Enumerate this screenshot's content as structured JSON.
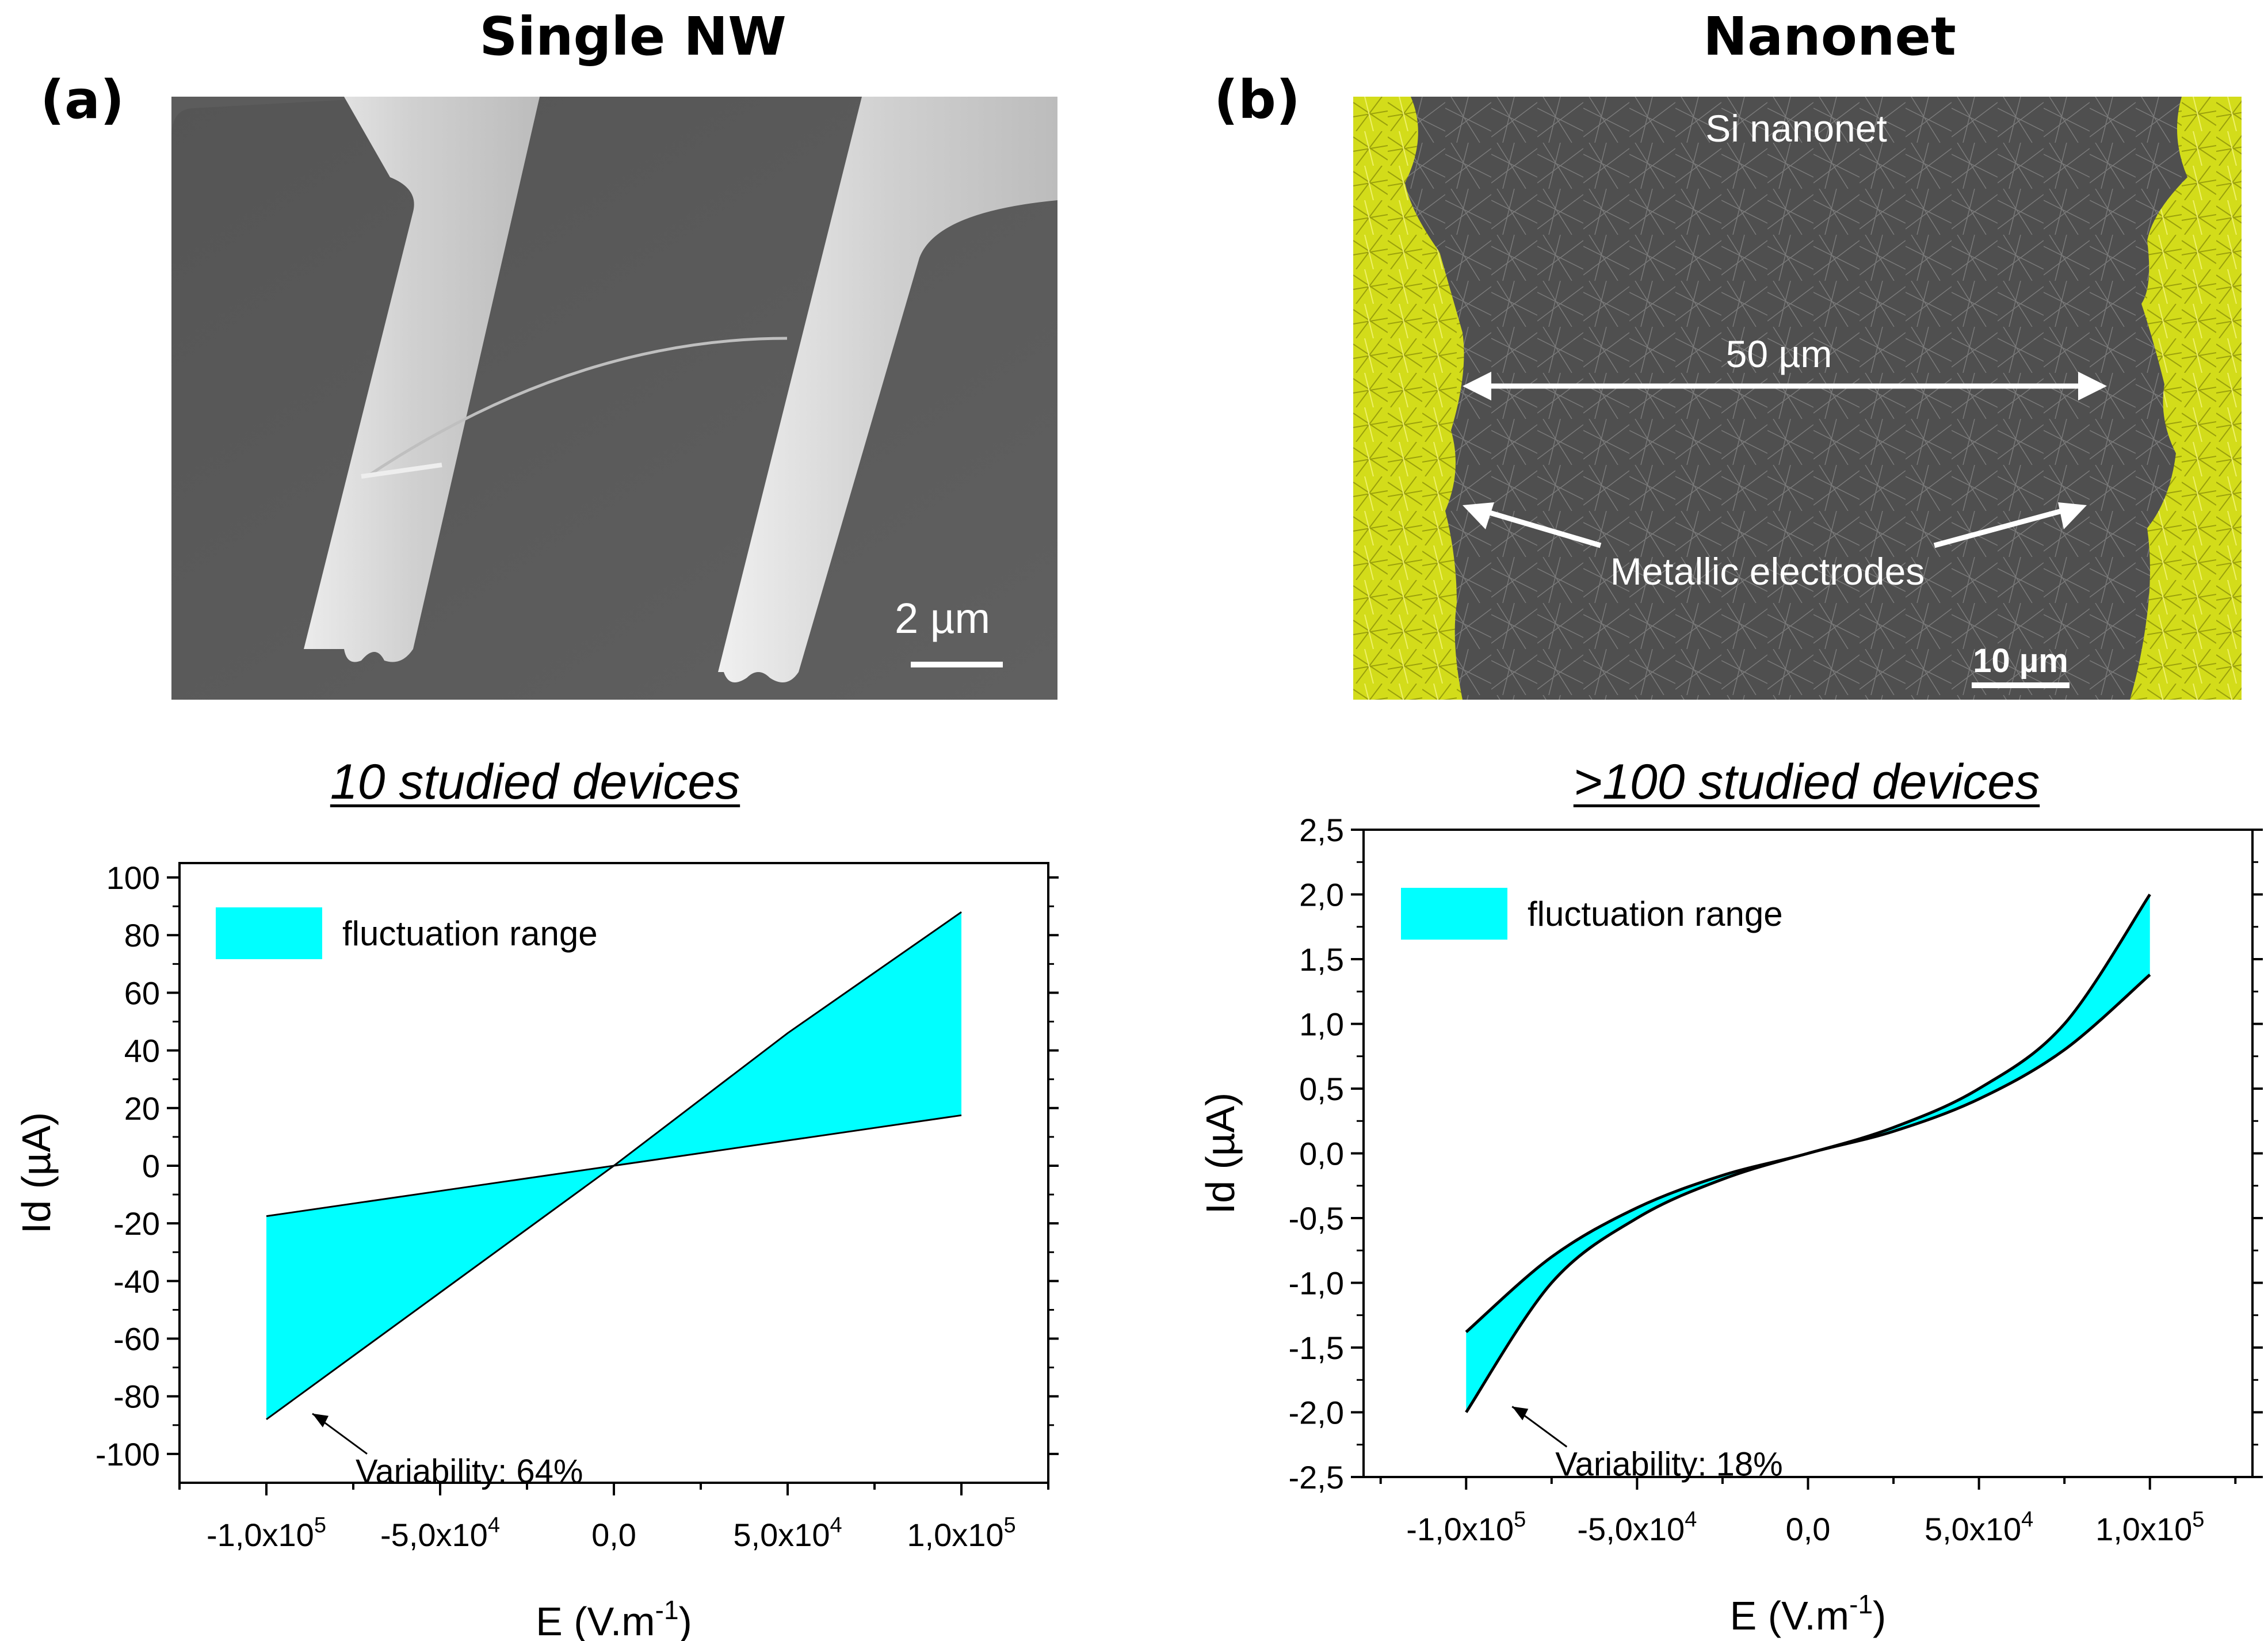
{
  "panels": [
    {
      "letter": "(a)",
      "title": "Single NW",
      "image": {
        "scale_label": "2 µm"
      },
      "subtitle": "10 studied devices"
    },
    {
      "letter": "(b)",
      "title": "Nanonet",
      "image": {
        "label_top": "Si nanonet",
        "dimension_label": "50 µm",
        "electrode_label": "Metallic electrodes",
        "scale_label": "10 µm"
      },
      "subtitle": ">100 studied devices"
    }
  ],
  "colors": {
    "fill": "#00ffff",
    "electrode": "#d6dd1e",
    "sem_bg": "#5a5a5a",
    "sem_bg_dark": "#4a4a4a",
    "metal": "#d4d4d4"
  },
  "chart_data": [
    {
      "type": "area",
      "title": "10 studied devices",
      "xlabel": "E (V.m",
      "xlabel_sup": "-1",
      "xlabel_end": ")",
      "ylabel": "Id  (µA)",
      "xlim": [
        -125000,
        125000
      ],
      "ylim": [
        -110,
        105
      ],
      "yticks": [
        100,
        80,
        60,
        40,
        20,
        0,
        -20,
        -40,
        -60,
        -80,
        -100
      ],
      "ytick_labels": [
        "100",
        "80",
        "60",
        "40",
        "20",
        "0",
        "-20",
        "-40",
        "-60",
        "-80",
        "-100"
      ],
      "xticks": [
        -100000,
        -50000,
        0,
        50000,
        100000
      ],
      "xtick_labels": [
        {
          "base": "-1,0x10",
          "exp": "5"
        },
        {
          "base": "-5,0x10",
          "exp": "4"
        },
        {
          "base": "0,0",
          "exp": ""
        },
        {
          "base": "5,0x10",
          "exp": "4"
        },
        {
          "base": "1,0x10",
          "exp": "5"
        }
      ],
      "legend": "fluctuation range",
      "annotation": "Variability: 64%",
      "series": [
        {
          "name": "upper",
          "x": [
            -100000,
            -50000,
            0,
            50000,
            100000
          ],
          "y": [
            -17.5,
            -8.75,
            0,
            46,
            88
          ]
        },
        {
          "name": "lower",
          "x": [
            -100000,
            -50000,
            0,
            50000,
            100000
          ],
          "y": [
            -88,
            -44,
            0,
            8.75,
            17.5
          ]
        }
      ]
    },
    {
      "type": "area",
      "title": ">100 studied devices",
      "xlabel": "E (V.m",
      "xlabel_sup": "-1",
      "xlabel_end": ")",
      "ylabel": "Id  (µA)",
      "xlim": [
        -130000,
        130000
      ],
      "ylim": [
        -2.5,
        2.5
      ],
      "yticks": [
        2.5,
        2.0,
        1.5,
        1.0,
        0.5,
        0.0,
        -0.5,
        -1.0,
        -1.5,
        -2.0,
        -2.5
      ],
      "ytick_labels": [
        "2,5",
        "2,0",
        "1,5",
        "1,0",
        "0,5",
        "0,0",
        "-0,5",
        "-1,0",
        "-1,5",
        "-2,0",
        "-2,5"
      ],
      "xticks": [
        -100000,
        -50000,
        0,
        50000,
        100000
      ],
      "xtick_labels": [
        {
          "base": "-1,0x10",
          "exp": "5"
        },
        {
          "base": "-5,0x10",
          "exp": "4"
        },
        {
          "base": "0,0",
          "exp": ""
        },
        {
          "base": "5,0x10",
          "exp": "4"
        },
        {
          "base": "1,0x10",
          "exp": "5"
        }
      ],
      "legend": "fluctuation range",
      "annotation": "Variability: 18%",
      "series": [
        {
          "name": "upper",
          "x": [
            -100000,
            -75000,
            -50000,
            -25000,
            0,
            25000,
            50000,
            75000,
            100000
          ],
          "y": [
            -1.38,
            -0.8,
            -0.42,
            -0.17,
            0,
            0.2,
            0.5,
            1.0,
            2.0
          ]
        },
        {
          "name": "lower",
          "x": [
            -100000,
            -75000,
            -50000,
            -25000,
            0,
            25000,
            50000,
            75000,
            100000
          ],
          "y": [
            -2.0,
            -1.0,
            -0.5,
            -0.2,
            0,
            0.17,
            0.42,
            0.8,
            1.38
          ]
        }
      ]
    }
  ]
}
